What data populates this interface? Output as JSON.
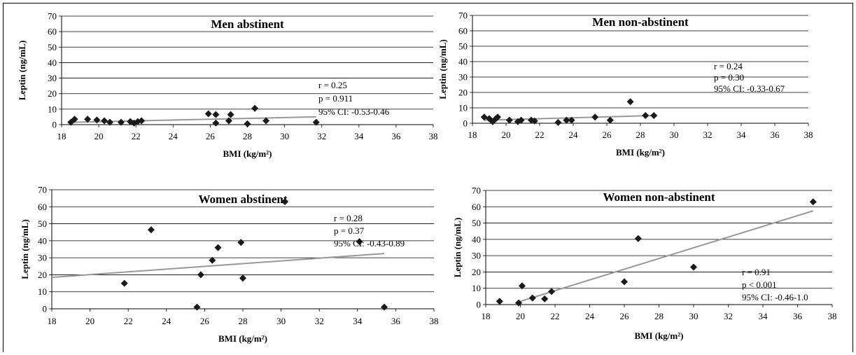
{
  "chart_data": [
    {
      "type": "scatter",
      "title": "Men abstinent",
      "xlabel": "BMI (kg/m²)",
      "ylabel": "Leptin (ng/mL)",
      "xlim": [
        18,
        38
      ],
      "ylim": [
        0,
        70
      ],
      "xticks": [
        "18",
        "20",
        "22",
        "24",
        "26",
        "28",
        "30",
        "32",
        "34",
        "36",
        "38"
      ],
      "yticks": [
        "0",
        "10",
        "20",
        "30",
        "40",
        "50",
        "60",
        "70"
      ],
      "grid": "horizontal",
      "marker": "diamond",
      "marker_color": "#1a1a1a",
      "trend_color": "#999999",
      "points": [
        [
          18.5,
          1.5
        ],
        [
          18.7,
          3.5
        ],
        [
          19.4,
          3.5
        ],
        [
          19.9,
          3
        ],
        [
          20.3,
          2.5
        ],
        [
          20.6,
          1.5
        ],
        [
          21.2,
          1.5
        ],
        [
          21.7,
          2
        ],
        [
          21.9,
          1
        ],
        [
          22.1,
          2
        ],
        [
          22.3,
          2.5
        ],
        [
          25.9,
          7
        ],
        [
          26.3,
          6.5
        ],
        [
          26.3,
          1
        ],
        [
          27,
          2.5
        ],
        [
          27.1,
          6.5
        ],
        [
          28,
          0.5
        ],
        [
          28.4,
          10.5
        ],
        [
          29,
          2.5
        ],
        [
          31.7,
          1.5
        ]
      ],
      "trend": [
        [
          18.5,
          1.5
        ],
        [
          31.7,
          5
        ]
      ],
      "stats": [
        "r = 0.25",
        "p = 0.911",
        "95% CI: -0.53-0.46"
      ]
    },
    {
      "type": "scatter",
      "title": "Men non-abstinent",
      "xlabel": "BMI (kg/m²)",
      "ylabel": "Leptin (ng/mL)",
      "xlim": [
        18,
        38
      ],
      "ylim": [
        0,
        70
      ],
      "xticks": [
        "18",
        "20",
        "22",
        "24",
        "26",
        "28",
        "30",
        "32",
        "34",
        "36",
        "38"
      ],
      "yticks": [
        "0",
        "10",
        "20",
        "30",
        "40",
        "50",
        "60",
        "70"
      ],
      "grid": "horizontal",
      "marker": "diamond",
      "marker_color": "#1a1a1a",
      "trend_color": "#999999",
      "points": [
        [
          18.7,
          4
        ],
        [
          19,
          3
        ],
        [
          19.2,
          1
        ],
        [
          19.4,
          3
        ],
        [
          19.5,
          4
        ],
        [
          20.2,
          2
        ],
        [
          20.7,
          1
        ],
        [
          20.9,
          2
        ],
        [
          21.5,
          2
        ],
        [
          21.7,
          1.5
        ],
        [
          23.1,
          0.5
        ],
        [
          23.6,
          2
        ],
        [
          23.9,
          2
        ],
        [
          25.3,
          4
        ],
        [
          26.2,
          2
        ],
        [
          27.4,
          14
        ],
        [
          28.3,
          5
        ],
        [
          28.8,
          5
        ]
      ],
      "trend": [
        [
          18.7,
          2
        ],
        [
          28.8,
          5
        ]
      ],
      "stats": [
        "r = 0.24",
        "p = 0.30",
        "95% CI: -0.33-0.67"
      ]
    },
    {
      "type": "scatter",
      "title": "Women abstinent",
      "xlabel": "BMI (kg/m²)",
      "ylabel": "Leptin (ng/mL)",
      "xlim": [
        18,
        38
      ],
      "ylim": [
        0,
        70
      ],
      "xticks": [
        "18",
        "20",
        "22",
        "24",
        "26",
        "28",
        "30",
        "32",
        "34",
        "36",
        "38"
      ],
      "yticks": [
        "0",
        "10",
        "20",
        "30",
        "40",
        "50",
        "60",
        "70"
      ],
      "grid": "horizontal",
      "marker": "diamond",
      "marker_color": "#1a1a1a",
      "trend_color": "#999999",
      "points": [
        [
          21.8,
          15
        ],
        [
          23.2,
          46.5
        ],
        [
          25.6,
          1
        ],
        [
          25.8,
          20
        ],
        [
          26.4,
          28.5
        ],
        [
          26.7,
          36
        ],
        [
          27.9,
          39
        ],
        [
          28,
          18
        ],
        [
          30.2,
          63
        ],
        [
          34.1,
          39.5
        ],
        [
          35.4,
          1
        ]
      ],
      "trend": [
        [
          18,
          18.5
        ],
        [
          35.4,
          32.5
        ]
      ],
      "stats": [
        "r = 0.28",
        "p = 0.37",
        "95% CI: -0.43-0.89"
      ]
    },
    {
      "type": "scatter",
      "title": "Women non-abstinent",
      "xlabel": "BMI (kg/m²)",
      "ylabel": "Leptin (ng/mL)",
      "xlim": [
        18,
        38
      ],
      "ylim": [
        0,
        70
      ],
      "xticks": [
        "18",
        "20",
        "22",
        "24",
        "26",
        "28",
        "30",
        "32",
        "34",
        "36",
        "38"
      ],
      "yticks": [
        "0",
        "10",
        "20",
        "30",
        "40",
        "50",
        "60",
        "70"
      ],
      "grid": "horizontal",
      "marker": "diamond",
      "marker_color": "#1a1a1a",
      "trend_color": "#999999",
      "points": [
        [
          18.8,
          2
        ],
        [
          19.9,
          1
        ],
        [
          20.1,
          11.5
        ],
        [
          20.7,
          4
        ],
        [
          21.4,
          3.5
        ],
        [
          21.8,
          8
        ],
        [
          26,
          14
        ],
        [
          26.8,
          40.5
        ],
        [
          30,
          23
        ],
        [
          36.9,
          63
        ]
      ],
      "trend": [
        [
          19.7,
          1
        ],
        [
          36.9,
          57.5
        ]
      ],
      "stats": [
        "r = 0.91",
        "p < 0.001",
        "95% CI: -0.46-1.0"
      ]
    }
  ]
}
